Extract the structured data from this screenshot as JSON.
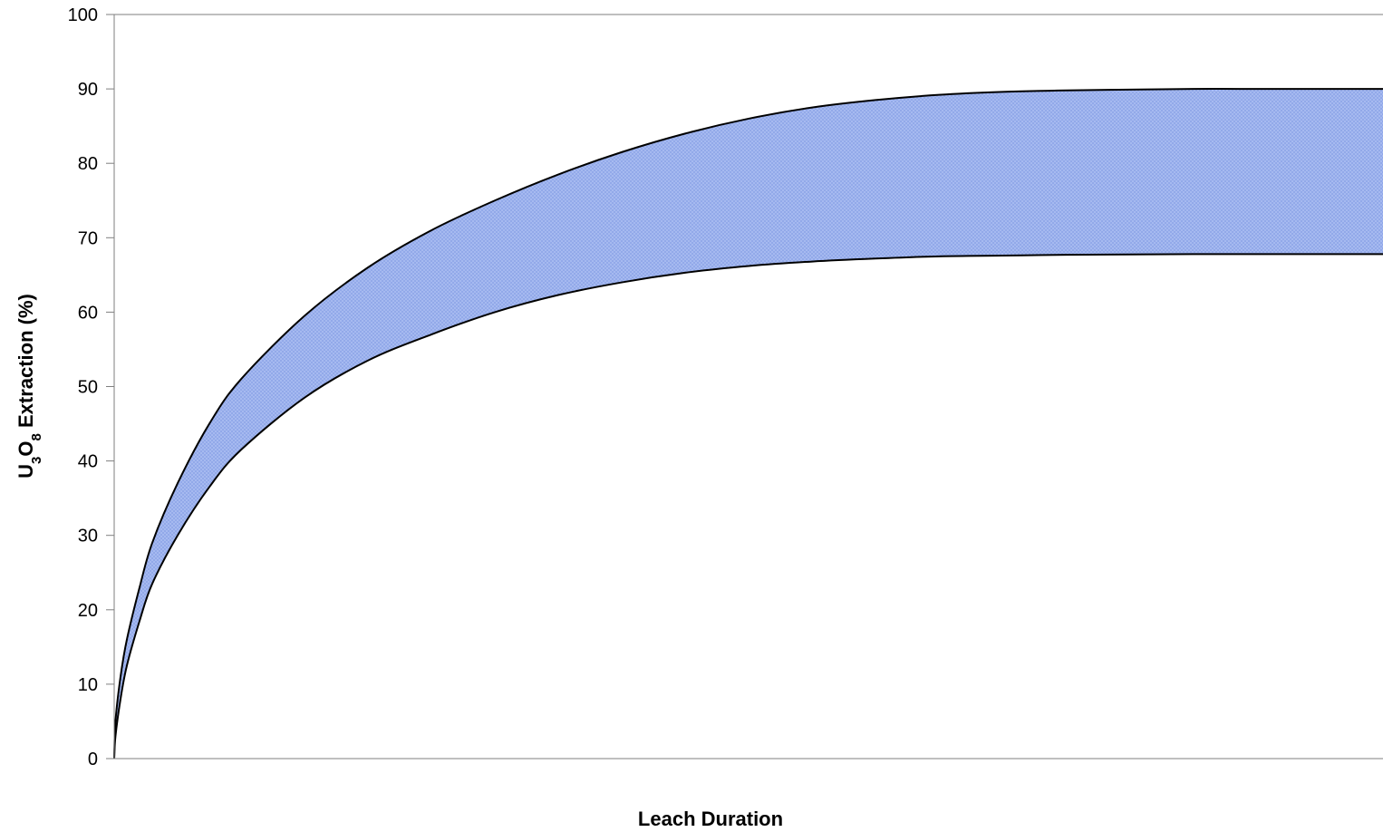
{
  "chart_data": {
    "type": "area",
    "xlabel": "Leach Duration",
    "ylabel": {
      "parts": [
        {
          "text": "U",
          "sub": false
        },
        {
          "text": "3",
          "sub": true
        },
        {
          "text": "O",
          "sub": false
        },
        {
          "text": "8",
          "sub": true
        },
        {
          "text": " Extraction (%)",
          "sub": false
        }
      ]
    },
    "ylim": [
      0,
      100
    ],
    "yticks": [
      "0",
      "10",
      "20",
      "30",
      "40",
      "50",
      "60",
      "70",
      "80",
      "90",
      "100"
    ],
    "xlim": [
      0,
      1
    ],
    "x_tick_labels": [],
    "grid": false,
    "legend": null,
    "x": [
      0,
      0.001,
      0.005,
      0.01,
      0.02,
      0.03,
      0.05,
      0.075,
      0.1,
      0.15,
      0.2,
      0.25,
      0.3,
      0.35,
      0.4,
      0.45,
      0.5,
      0.55,
      0.6,
      0.65,
      0.7,
      0.75,
      0.8,
      0.85,
      0.9,
      0.95,
      1.0
    ],
    "series": [
      {
        "values": [
          0,
          5,
          11,
          16,
          23,
          29,
          37,
          45,
          51,
          59.5,
          66,
          71,
          75,
          78.5,
          81.5,
          84,
          86,
          87.5,
          88.5,
          89.2,
          89.6,
          89.8,
          89.9,
          90,
          90,
          90,
          90
        ],
        "line_color": "#000000"
      },
      {
        "values": [
          0,
          3,
          8,
          12.5,
          18.5,
          23.5,
          30,
          36.5,
          41.5,
          48.5,
          53.5,
          57,
          60,
          62.3,
          64,
          65.3,
          66.2,
          66.8,
          67.2,
          67.5,
          67.6,
          67.7,
          67.75,
          67.8,
          67.8,
          67.8,
          67.8
        ],
        "line_color": "#000000"
      }
    ],
    "band_fill": "#aabdf2",
    "band_hatch": "#8aa2e6",
    "axis_color": "#7f7f7f"
  }
}
